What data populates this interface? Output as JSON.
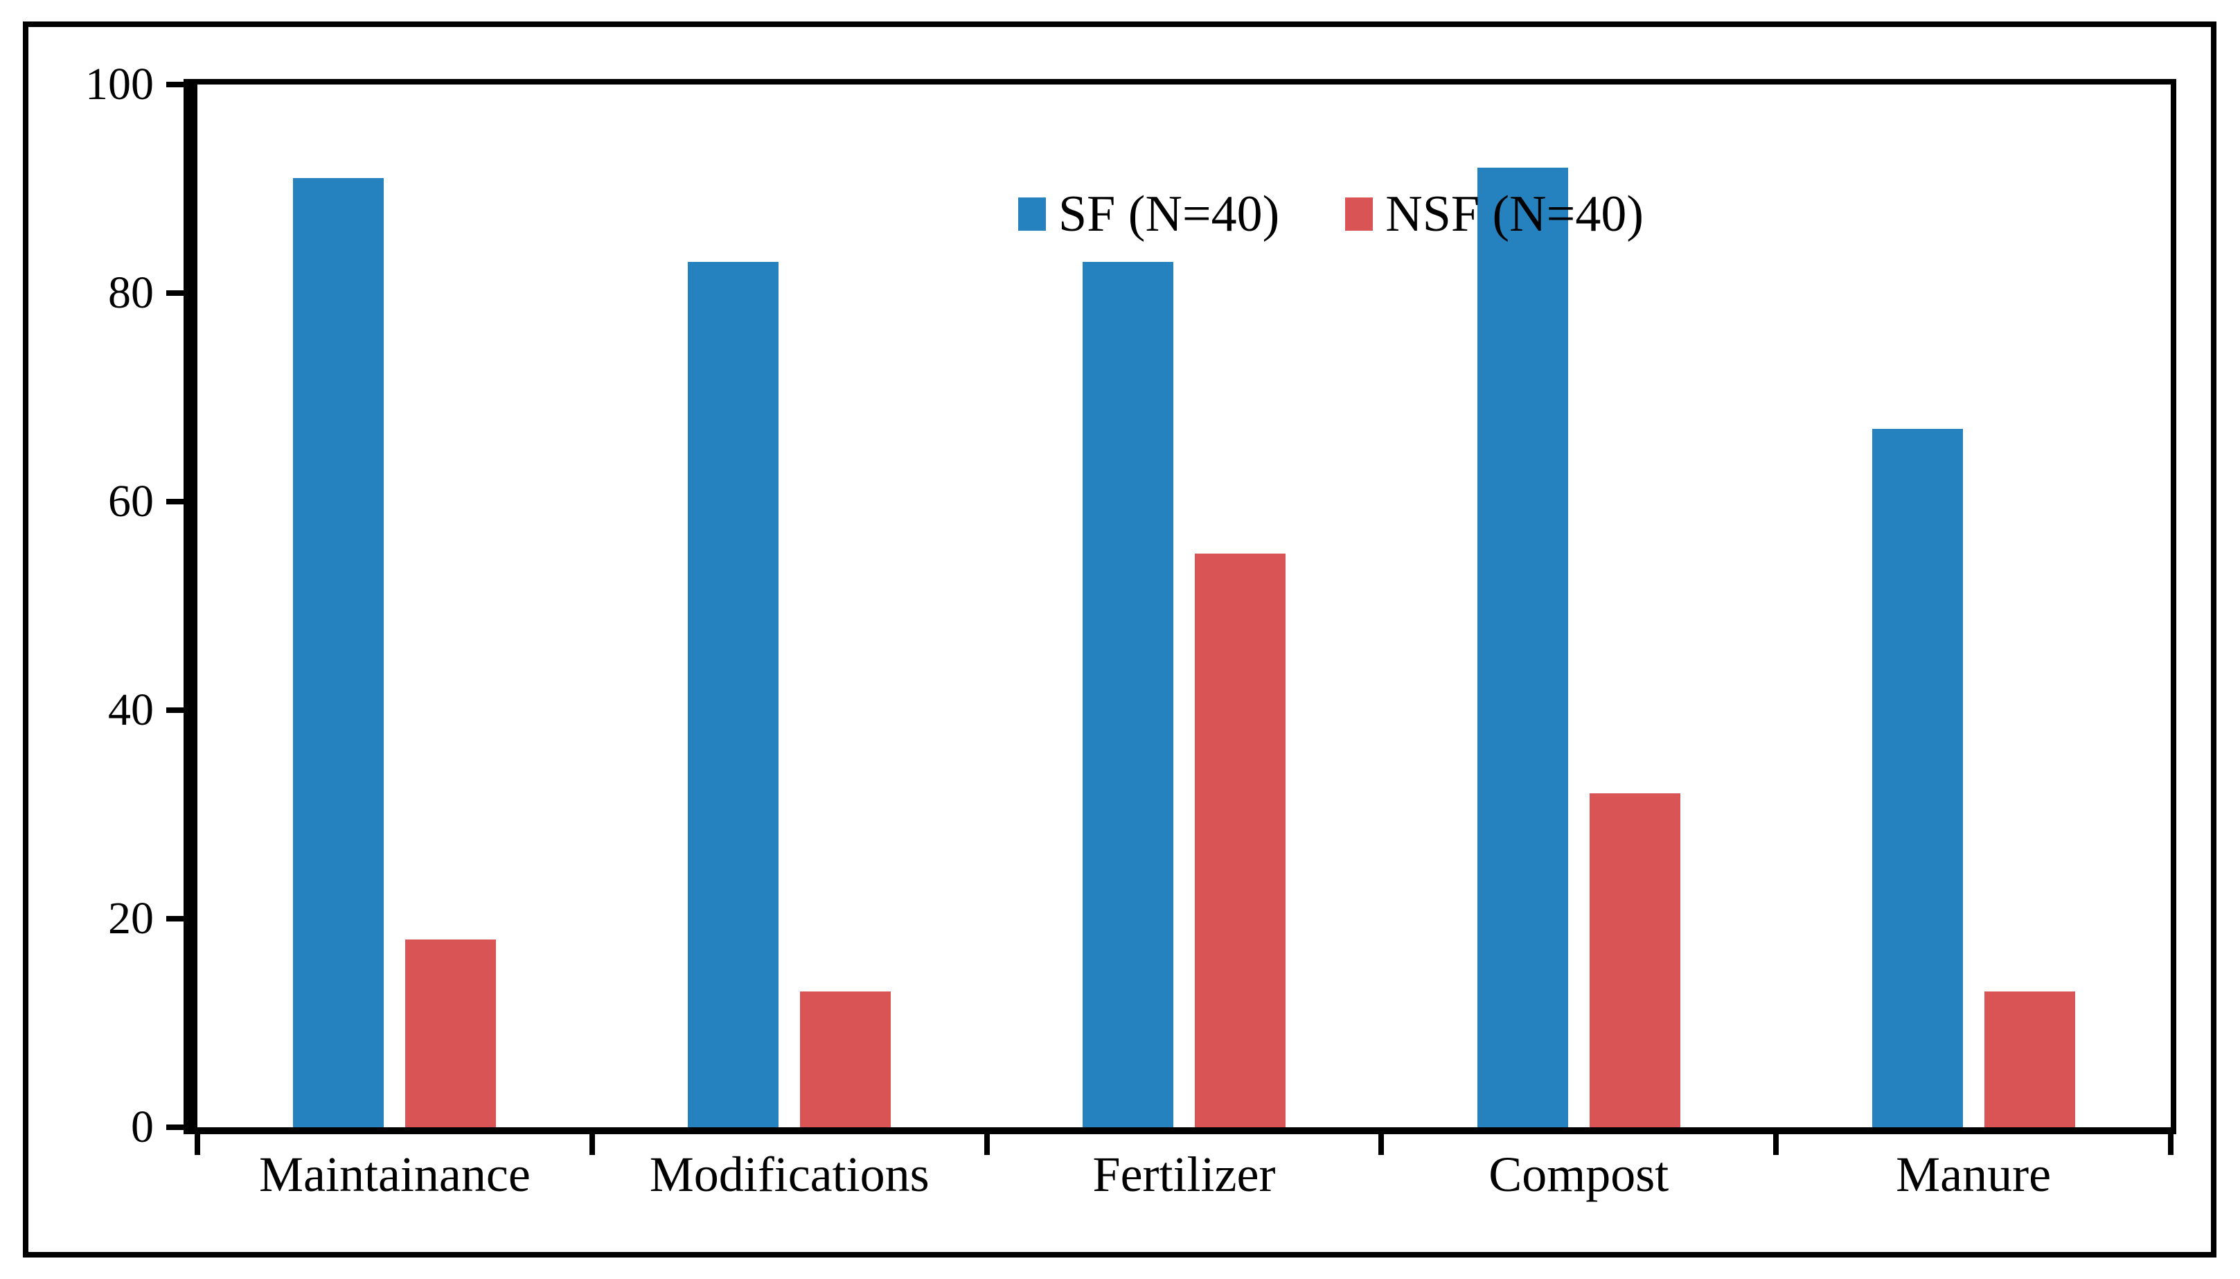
{
  "figure": {
    "background": "#FFFFFF",
    "frame_color": "#000000",
    "text_color": "#000000"
  },
  "chart_data": {
    "type": "bar",
    "title": "",
    "xlabel": "",
    "ylabel": "",
    "categories": [
      "Maintainance",
      "Modifications",
      "Fertilizer",
      "Compost",
      "Manure"
    ],
    "series": [
      {
        "name": "SF (N=40)",
        "color": "#2681BF",
        "values": [
          91,
          83,
          83,
          92,
          67
        ]
      },
      {
        "name": "NSF (N=40)",
        "color": "#D95454",
        "values": [
          18,
          13,
          55,
          32,
          13
        ]
      }
    ],
    "ylim": [
      0,
      100
    ],
    "yticks": [
      0,
      20,
      40,
      60,
      80,
      100
    ],
    "legend": {
      "entries": [
        "SF (N=40)",
        "NSF (N=40)"
      ],
      "position": "top-center-inside"
    },
    "grid": false
  }
}
